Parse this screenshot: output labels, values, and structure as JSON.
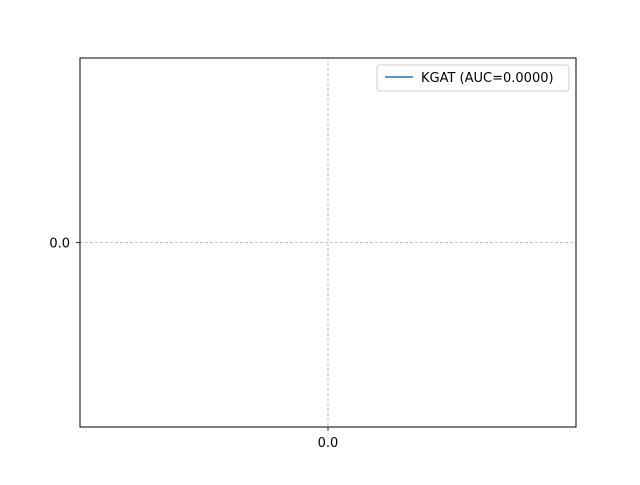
{
  "chart_data": {
    "type": "line",
    "title": "",
    "xlabel": "",
    "ylabel": "",
    "xlim": [
      -0.05,
      0.05
    ],
    "ylim": [
      -0.05,
      0.05
    ],
    "x_ticks": [
      {
        "value": 0.0,
        "label": "0.0"
      }
    ],
    "y_ticks": [
      {
        "value": 0.0,
        "label": "0.0"
      }
    ],
    "grid": true,
    "grid_style": "dashed",
    "legend_position": "top-right",
    "series": [
      {
        "name": "KGAT (AUC=0.0000)",
        "color": "#1f77b4",
        "x": [],
        "y": []
      }
    ]
  }
}
